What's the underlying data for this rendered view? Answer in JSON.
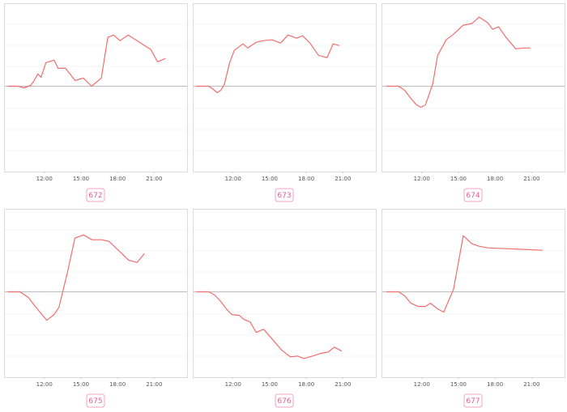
{
  "chart_data": [
    {
      "type": "line",
      "label": "672",
      "color": "#f26d6d",
      "x": [
        9,
        9.87,
        10.33,
        10.87,
        11.13,
        11.47,
        11.73,
        12.13,
        12.8,
        13.13,
        13.73,
        14.53,
        15.2,
        15.87,
        16.67,
        17.2,
        17.67,
        18.2,
        18.87,
        20,
        20.73,
        21.27,
        21.93
      ],
      "values": [
        0,
        0,
        -0.02,
        0.01,
        0.06,
        0.15,
        0.11,
        0.29,
        0.32,
        0.22,
        0.22,
        0.07,
        0.1,
        0,
        0.1,
        0.6,
        0.63,
        0.56,
        0.63,
        0.52,
        0.45,
        0.3,
        0.34
      ],
      "xlim": [
        8.7,
        23.7
      ],
      "ylim": [
        -1.05,
        1.02
      ],
      "xticks": [
        {
          "value": 12,
          "label": "12:00"
        },
        {
          "value": 15,
          "label": "15:00"
        },
        {
          "value": 18,
          "label": "18:00"
        },
        {
          "value": 21,
          "label": "21:00"
        }
      ]
    },
    {
      "type": "line",
      "label": "673",
      "color": "#f26d6d",
      "x": [
        9,
        10,
        10.3,
        10.7,
        11,
        11.3,
        11.7,
        12.1,
        12.8,
        13.2,
        13.9,
        14.5,
        15.2,
        15.9,
        16.5,
        17.2,
        17.7,
        18.3,
        19,
        19.7,
        20.2,
        20.7
      ],
      "values": [
        0,
        0,
        -0.03,
        -0.08,
        -0.05,
        0.03,
        0.28,
        0.44,
        0.52,
        0.47,
        0.54,
        0.56,
        0.57,
        0.53,
        0.63,
        0.59,
        0.62,
        0.53,
        0.38,
        0.35,
        0.52,
        0.5
      ],
      "xlim": [
        8.7,
        23.7
      ],
      "ylim": [
        -1.05,
        1.02
      ],
      "xticks": [
        {
          "value": 12,
          "label": "12:00"
        },
        {
          "value": 15,
          "label": "15:00"
        },
        {
          "value": 18,
          "label": "18:00"
        },
        {
          "value": 21,
          "label": "21:00"
        }
      ]
    },
    {
      "type": "line",
      "label": "674",
      "color": "#f26d6d",
      "x": [
        9.1,
        10.1,
        10.6,
        11.1,
        11.5,
        11.9,
        12.3,
        12.9,
        13.3,
        14,
        14.6,
        15.4,
        16.1,
        16.7,
        17.4,
        17.8,
        18.3,
        18.9,
        19.7,
        20.3,
        20.9
      ],
      "values": [
        0,
        0,
        -0.05,
        -0.15,
        -0.22,
        -0.26,
        -0.23,
        0.03,
        0.38,
        0.57,
        0.64,
        0.75,
        0.77,
        0.85,
        0.78,
        0.7,
        0.73,
        0.6,
        0.46,
        0.47,
        0.47
      ],
      "xlim": [
        8.7,
        23.7
      ],
      "ylim": [
        -1.05,
        1.02
      ],
      "xticks": [
        {
          "value": 12,
          "label": "12:00"
        },
        {
          "value": 15,
          "label": "15:00"
        },
        {
          "value": 18,
          "label": "18:00"
        },
        {
          "value": 21,
          "label": "21:00"
        }
      ]
    },
    {
      "type": "line",
      "label": "675",
      "color": "#f26d6d",
      "x": [
        9,
        10,
        10.7,
        11.2,
        11.7,
        12.2,
        12.8,
        13.2,
        13.9,
        14.5,
        15.2,
        15.9,
        16.7,
        17.3,
        18,
        18.9,
        19.6,
        20.2
      ],
      "values": [
        0,
        0,
        -0.07,
        -0.17,
        -0.26,
        -0.35,
        -0.28,
        -0.19,
        0.24,
        0.66,
        0.7,
        0.64,
        0.64,
        0.62,
        0.52,
        0.39,
        0.36,
        0.47
      ],
      "xlim": [
        8.7,
        23.7
      ],
      "ylim": [
        -1.05,
        1.02
      ],
      "xticks": [
        {
          "value": 12,
          "label": "12:00"
        },
        {
          "value": 15,
          "label": "15:00"
        },
        {
          "value": 18,
          "label": "18:00"
        },
        {
          "value": 21,
          "label": "21:00"
        }
      ]
    },
    {
      "type": "line",
      "label": "676",
      "color": "#f26d6d",
      "x": [
        9,
        10,
        10.5,
        11,
        11.5,
        11.9,
        12.5,
        12.9,
        13.4,
        13.9,
        14.5,
        15.2,
        16,
        16.7,
        17.3,
        17.8,
        18.5,
        19.1,
        19.8,
        20.3,
        20.9
      ],
      "values": [
        0,
        0,
        -0.04,
        -0.12,
        -0.22,
        -0.28,
        -0.29,
        -0.34,
        -0.37,
        -0.5,
        -0.46,
        -0.58,
        -0.72,
        -0.8,
        -0.79,
        -0.82,
        -0.79,
        -0.76,
        -0.74,
        -0.68,
        -0.73
      ],
      "xlim": [
        8.7,
        23.7
      ],
      "ylim": [
        -1.05,
        1.02
      ],
      "xticks": [
        {
          "value": 12,
          "label": "12:00"
        },
        {
          "value": 15,
          "label": "15:00"
        },
        {
          "value": 18,
          "label": "18:00"
        },
        {
          "value": 21,
          "label": "21:00"
        }
      ]
    },
    {
      "type": "line",
      "label": "677",
      "color": "#f26d6d",
      "x": [
        9.1,
        10.1,
        10.6,
        11.1,
        11.7,
        12.3,
        12.7,
        13.3,
        13.8,
        14.6,
        15.4,
        16.1,
        16.7,
        17.4,
        18.9,
        21.9
      ],
      "values": [
        0,
        0,
        -0.05,
        -0.14,
        -0.18,
        -0.18,
        -0.14,
        -0.21,
        -0.25,
        0.03,
        0.69,
        0.59,
        0.56,
        0.54,
        0.53,
        0.51
      ],
      "xlim": [
        8.7,
        23.7
      ],
      "ylim": [
        -1.05,
        1.02
      ],
      "xticks": [
        {
          "value": 12,
          "label": "12:00"
        },
        {
          "value": 15,
          "label": "15:00"
        },
        {
          "value": 18,
          "label": "18:00"
        },
        {
          "value": 21,
          "label": "21:00"
        }
      ]
    }
  ]
}
